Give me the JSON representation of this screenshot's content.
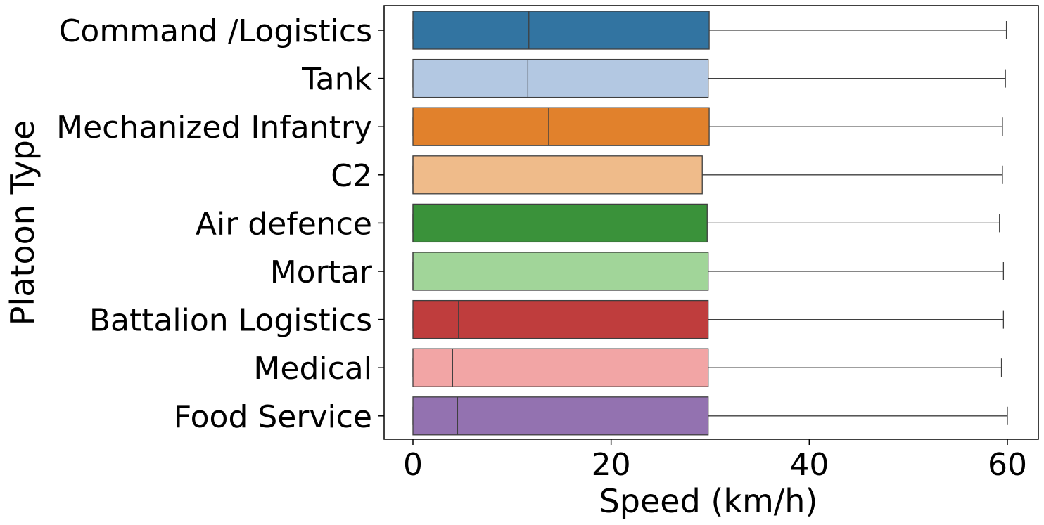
{
  "chart_data": {
    "type": "boxplot",
    "orientation": "horizontal",
    "xlabel": "Speed (km/h)",
    "ylabel": "Platoon Type",
    "xlim": [
      -3,
      63
    ],
    "x_ticks": [
      0,
      20,
      40,
      60
    ],
    "grid": false,
    "legend": "none",
    "categories": [
      "Command /Logistics",
      "Tank",
      "Mechanized Infantry",
      "C2",
      "Air defence",
      "Mortar",
      "Battalion Logistics",
      "Medical",
      "Food Service"
    ],
    "boxes": [
      {
        "category": "Command /Logistics",
        "whisker_low": 0,
        "q1": 0,
        "median": 11.7,
        "q3": 29.9,
        "whisker_high": 59.9,
        "color": "#3274a1"
      },
      {
        "category": "Tank",
        "whisker_low": 0,
        "q1": 0,
        "median": 11.6,
        "q3": 29.8,
        "whisker_high": 59.8,
        "color": "#b3c8e2"
      },
      {
        "category": "Mechanized Infantry",
        "whisker_low": 0,
        "q1": 0,
        "median": 13.7,
        "q3": 29.9,
        "whisker_high": 59.5,
        "color": "#e1812c"
      },
      {
        "category": "C2",
        "whisker_low": 0,
        "q1": 0,
        "median": 0,
        "q3": 29.2,
        "whisker_high": 59.5,
        "color": "#efbb8a"
      },
      {
        "category": "Air defence",
        "whisker_low": 0,
        "q1": 0,
        "median": 0,
        "q3": 29.7,
        "whisker_high": 59.2,
        "color": "#3a923a"
      },
      {
        "category": "Mortar",
        "whisker_low": 0,
        "q1": 0,
        "median": 0,
        "q3": 29.8,
        "whisker_high": 59.6,
        "color": "#a1d599"
      },
      {
        "category": "Battalion Logistics",
        "whisker_low": 0,
        "q1": 0,
        "median": 4.6,
        "q3": 29.8,
        "whisker_high": 59.6,
        "color": "#bf3d3d"
      },
      {
        "category": "Medical",
        "whisker_low": 0,
        "q1": 0,
        "median": 4.0,
        "q3": 29.8,
        "whisker_high": 59.4,
        "color": "#f2a5a5"
      },
      {
        "category": "Food Service",
        "whisker_low": 0,
        "q1": 0,
        "median": 4.5,
        "q3": 29.8,
        "whisker_high": 60.0,
        "color": "#9372b0"
      }
    ]
  }
}
